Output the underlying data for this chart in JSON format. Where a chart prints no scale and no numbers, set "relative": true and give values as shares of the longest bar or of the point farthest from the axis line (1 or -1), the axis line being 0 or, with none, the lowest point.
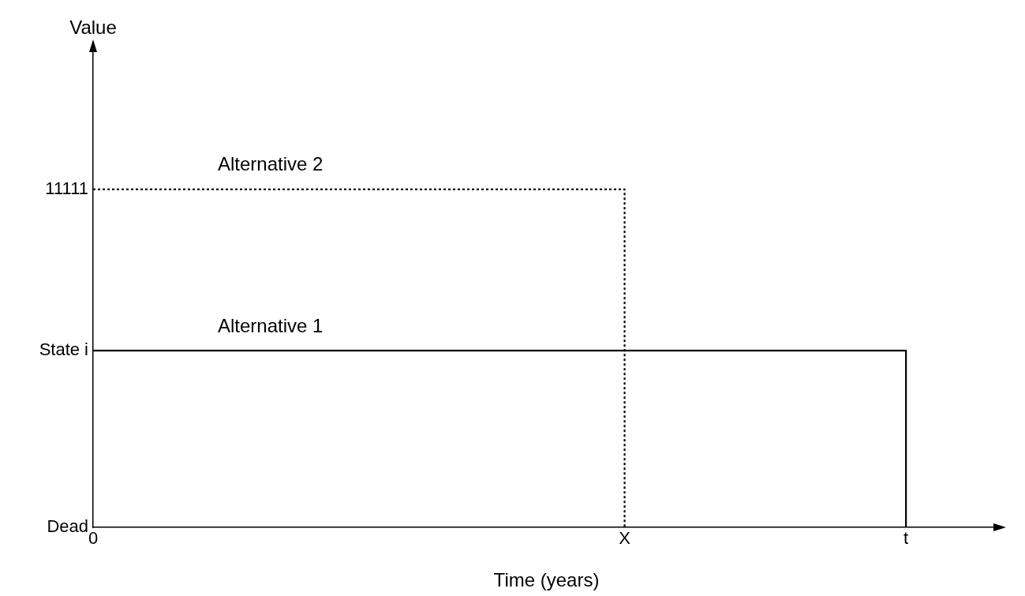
{
  "chart_data": {
    "type": "step",
    "relative": true,
    "xlabel": "Time (years)",
    "categories": [
      "0",
      null,
      null,
      null,
      null,
      null,
      null,
      null,
      null,
      null,
      null,
      null,
      null,
      null,
      null,
      null,
      null,
      "X",
      null,
      null,
      null,
      null,
      null,
      null,
      null,
      null,
      "t",
      null,
      null,
      null
    ],
    "annotations": [
      "Dead",
      "State i",
      "11111",
      "Value"
    ],
    "series": [
      {
        "name": "Alternative 1",
        "color": "#000000",
        "line_style": "solid",
        "values": [
          0.523,
          0.523,
          0.523,
          0.523,
          0.523,
          0.523,
          0.523,
          0.523,
          0.523,
          0.523,
          0.523,
          0.523,
          0.523,
          0.523,
          0.523,
          0.523,
          0.523,
          0.523,
          0.523,
          0.523,
          0.523,
          0.523,
          0.523,
          0.523,
          0.523,
          0.523,
          0,
          null,
          null,
          null
        ]
      },
      {
        "name": "Alternative 2",
        "color": "#000000",
        "line_style": "dotted",
        "values": [
          1,
          1,
          1,
          1,
          1,
          1,
          1,
          1,
          1,
          1,
          1,
          1,
          1,
          1,
          1,
          1,
          1,
          0,
          null,
          null,
          null,
          null,
          null,
          null,
          null,
          null,
          null,
          null,
          null,
          null
        ]
      }
    ]
  }
}
